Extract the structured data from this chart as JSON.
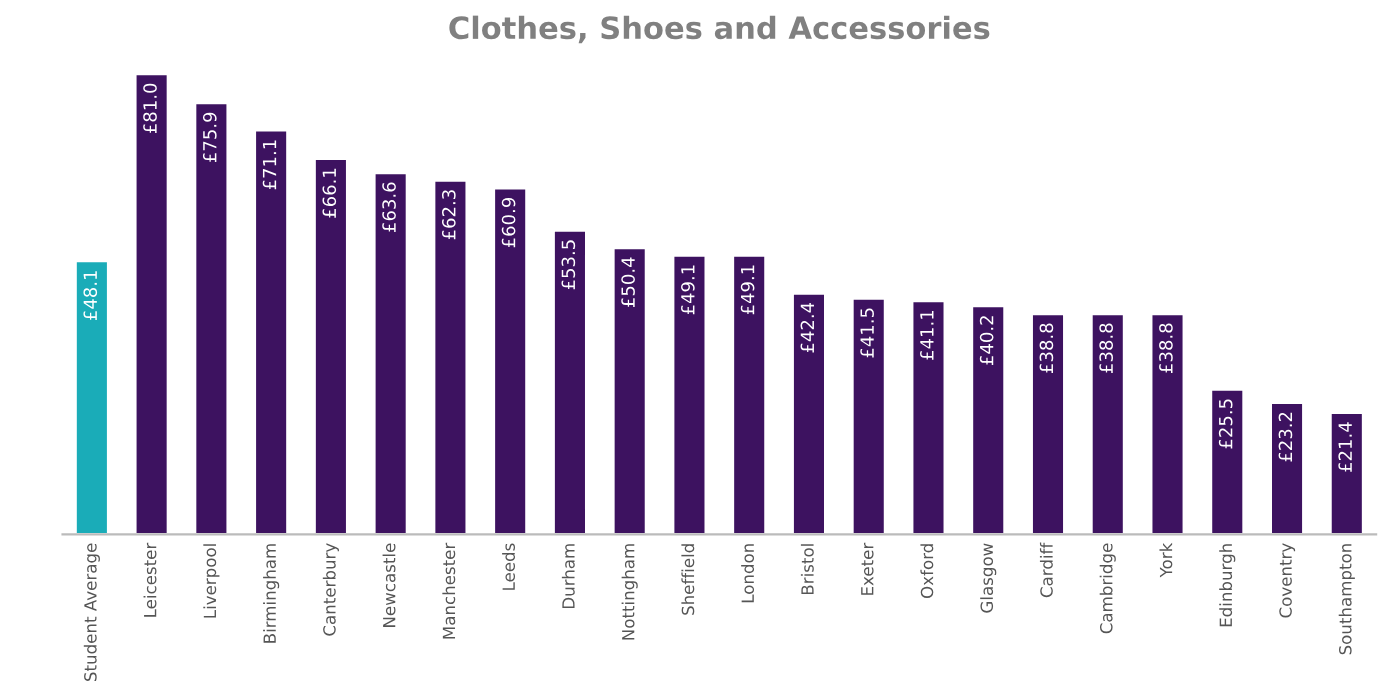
{
  "chart_data": {
    "type": "bar",
    "title": "Clothes, Shoes and Accessories",
    "categories": [
      "Student Average",
      "Leicester",
      "Liverpool",
      "Birmingham",
      "Canterbury",
      "Newcastle",
      "Manchester",
      "Leeds",
      "Durham",
      "Nottingham",
      "Sheffield",
      "London",
      "Bristol",
      "Exeter",
      "Oxford",
      "Glasgow",
      "Cardiff",
      "Cambridge",
      "York",
      "Edinburgh",
      "Coventry",
      "Southampton"
    ],
    "values": [
      48.1,
      81.0,
      75.9,
      71.1,
      66.1,
      63.6,
      62.3,
      60.9,
      53.5,
      50.4,
      49.1,
      49.1,
      42.4,
      41.5,
      41.1,
      40.2,
      38.8,
      38.8,
      38.8,
      25.5,
      23.2,
      21.4
    ],
    "value_labels": [
      "£48.1",
      "£81.0",
      "£75.9",
      "£71.1",
      "£66.1",
      "£63.6",
      "£62.3",
      "£60.9",
      "£53.5",
      "£50.4",
      "£49.1",
      "£49.1",
      "£42.4",
      "£41.5",
      "£41.1",
      "£40.2",
      "£38.8",
      "£38.8",
      "£38.8",
      "£25.5",
      "£23.2",
      "£21.4"
    ],
    "colors": [
      "#1aacb8",
      "#3d1260",
      "#3d1260",
      "#3d1260",
      "#3d1260",
      "#3d1260",
      "#3d1260",
      "#3d1260",
      "#3d1260",
      "#3d1260",
      "#3d1260",
      "#3d1260",
      "#3d1260",
      "#3d1260",
      "#3d1260",
      "#3d1260",
      "#3d1260",
      "#3d1260",
      "#3d1260",
      "#3d1260",
      "#3d1260",
      "#3d1260"
    ],
    "grid": false,
    "legend": false
  }
}
